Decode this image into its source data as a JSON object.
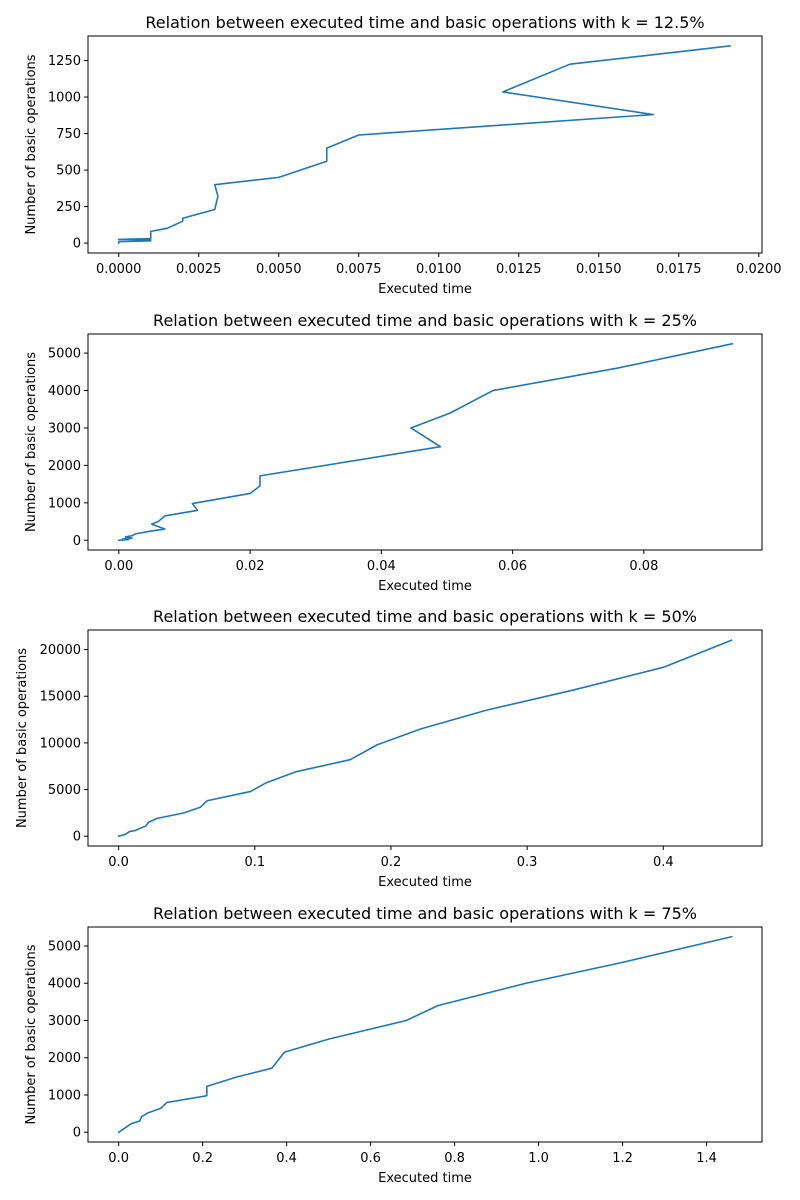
{
  "figure": {
    "background": "#ffffff",
    "line_color": "#1f77b4"
  },
  "chart_data": [
    {
      "type": "line",
      "title": "Relation between executed time and basic operations with k = 12.5%",
      "xlabel": "Executed time",
      "ylabel": "Number of basic operations",
      "xlim": [
        -0.00096,
        0.0201
      ],
      "ylim": [
        -68,
        1418
      ],
      "xticks": [
        0.0,
        0.0025,
        0.005,
        0.0075,
        0.01,
        0.0125,
        0.015,
        0.0175,
        0.02
      ],
      "xtick_labels": [
        "0.0000",
        "0.0025",
        "0.0050",
        "0.0075",
        "0.0100",
        "0.0125",
        "0.0150",
        "0.0175",
        "0.0200"
      ],
      "yticks": [
        0,
        250,
        500,
        750,
        1000,
        1250
      ],
      "ytick_labels": [
        "0",
        "250",
        "500",
        "750",
        "1000",
        "1250"
      ],
      "grid": false,
      "series": [
        {
          "x": [
            0.0,
            0.0,
            0.001,
            0.001,
            0.0,
            0.001,
            0.001,
            0.0015,
            0.002,
            0.002,
            0.003,
            0.0031,
            0.003,
            0.005,
            0.0065,
            0.0065,
            0.0075,
            0.0167,
            0.012,
            0.0141,
            0.0191
          ],
          "y": [
            0,
            10,
            15,
            20,
            25,
            30,
            80,
            100,
            150,
            170,
            230,
            320,
            400,
            450,
            560,
            650,
            740,
            880,
            1035,
            1225,
            1350
          ]
        }
      ]
    },
    {
      "type": "line",
      "title": "Relation between executed time and basic operations with k = 25%",
      "xlabel": "Executed time",
      "ylabel": "Number of basic operations",
      "xlim": [
        -0.0047,
        0.098
      ],
      "ylim": [
        -260,
        5510
      ],
      "xticks": [
        0.0,
        0.02,
        0.04,
        0.06,
        0.08
      ],
      "xtick_labels": [
        "0.00",
        "0.02",
        "0.04",
        "0.06",
        "0.08"
      ],
      "yticks": [
        0,
        1000,
        2000,
        3000,
        4000,
        5000
      ],
      "ytick_labels": [
        "0",
        "1000",
        "2000",
        "3000",
        "4000",
        "5000"
      ],
      "grid": false,
      "series": [
        {
          "x": [
            0.0,
            0.0015,
            0.0005,
            0.002,
            0.001,
            0.002,
            0.0025,
            0.005,
            0.007,
            0.005,
            0.006,
            0.007,
            0.012,
            0.0112,
            0.02,
            0.0215,
            0.0215,
            0.049,
            0.0445,
            0.0505,
            0.057,
            0.076,
            0.0935
          ],
          "y": [
            0,
            20,
            30,
            60,
            90,
            120,
            170,
            250,
            300,
            430,
            500,
            650,
            800,
            980,
            1250,
            1450,
            1720,
            2500,
            3000,
            3400,
            4000,
            4600,
            5250
          ]
        }
      ]
    },
    {
      "type": "line",
      "title": "Relation between executed time and basic operations with k = 50%",
      "xlabel": "Executed time",
      "ylabel": "Number of basic operations",
      "xlim": [
        -0.0225,
        0.4725
      ],
      "ylim": [
        -1050,
        22100
      ],
      "xticks": [
        0.0,
        0.1,
        0.2,
        0.3,
        0.4
      ],
      "xtick_labels": [
        "0.0",
        "0.1",
        "0.2",
        "0.3",
        "0.4"
      ],
      "yticks": [
        0,
        5000,
        10000,
        15000,
        20000
      ],
      "ytick_labels": [
        "0",
        "5000",
        "10000",
        "15000",
        "20000"
      ],
      "grid": false,
      "series": [
        {
          "x": [
            0.0,
            0.005,
            0.008,
            0.012,
            0.02,
            0.022,
            0.028,
            0.048,
            0.06,
            0.065,
            0.097,
            0.108,
            0.13,
            0.17,
            0.19,
            0.222,
            0.27,
            0.335,
            0.4,
            0.45
          ],
          "y": [
            0,
            200,
            500,
            600,
            1100,
            1500,
            1900,
            2500,
            3100,
            3800,
            4800,
            5700,
            6900,
            8200,
            9800,
            11500,
            13500,
            15700,
            18100,
            21000
          ]
        }
      ]
    },
    {
      "type": "line",
      "title": "Relation between executed time and basic operations with k = 75%",
      "xlabel": "Executed time",
      "ylabel": "Number of basic operations",
      "xlim": [
        -0.073,
        1.532
      ],
      "ylim": [
        -262,
        5510
      ],
      "xticks": [
        0.0,
        0.2,
        0.4,
        0.6,
        0.8,
        1.0,
        1.2,
        1.4
      ],
      "xtick_labels": [
        "0.0",
        "0.2",
        "0.4",
        "0.6",
        "0.8",
        "1.0",
        "1.2",
        "1.4"
      ],
      "yticks": [
        0,
        1000,
        2000,
        3000,
        4000,
        5000
      ],
      "ytick_labels": [
        "0",
        "1000",
        "2000",
        "3000",
        "4000",
        "5000"
      ],
      "grid": false,
      "series": [
        {
          "x": [
            0.0,
            0.03,
            0.05,
            0.055,
            0.07,
            0.1,
            0.115,
            0.21,
            0.21,
            0.28,
            0.365,
            0.395,
            0.5,
            0.685,
            0.76,
            0.97,
            1.2,
            1.46
          ],
          "y": [
            0,
            230,
            300,
            420,
            520,
            640,
            800,
            980,
            1230,
            1480,
            1720,
            2150,
            2500,
            3000,
            3400,
            4000,
            4560,
            5250
          ]
        }
      ]
    }
  ]
}
